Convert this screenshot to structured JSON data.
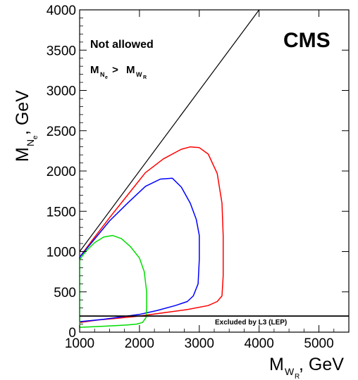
{
  "chart_data": {
    "type": "line",
    "title": "",
    "brand_label": "CMS",
    "xlabel": {
      "main": "M",
      "sub1": "W",
      "sub2": "R",
      "unit": ", GeV"
    },
    "ylabel": {
      "main": "M",
      "sub1": "N",
      "sub2": "e",
      "unit": ", GeV"
    },
    "xlim": [
      1000,
      5500
    ],
    "ylim": [
      0,
      4000
    ],
    "x_ticks": [
      1000,
      2000,
      3000,
      4000,
      5000
    ],
    "y_ticks": [
      0,
      500,
      1000,
      1500,
      2000,
      2500,
      3000,
      3500,
      4000
    ],
    "grid": false,
    "annotations": {
      "not_allowed": "Not allowed",
      "inequality": {
        "lhs_main": "M",
        "lhs_sub1": "N",
        "lhs_sub2": "e",
        "op": " > ",
        "rhs_main": "M",
        "rhs_sub1": "W",
        "rhs_sub2": "R"
      },
      "excluded": "Excluded by L3 (LEP)"
    },
    "reference_lines": [
      {
        "kind": "diagonal",
        "color": "#000000",
        "x": [
          1000,
          4000
        ],
        "y": [
          1000,
          4000
        ]
      },
      {
        "kind": "horizontal",
        "color": "#000000",
        "y": 200,
        "x": [
          1000,
          5500
        ]
      }
    ],
    "series": [
      {
        "color": "#ff0000",
        "x": [
          1000,
          1200,
          1500,
          1800,
          2100,
          2400,
          2700,
          2850,
          3000,
          3150,
          3300,
          3380,
          3400,
          3400,
          3380,
          3300,
          3150,
          2800,
          2400,
          2000,
          1600,
          1300,
          1000,
          1000
        ],
        "y": [
          930,
          1130,
          1420,
          1700,
          1980,
          2150,
          2270,
          2300,
          2290,
          2210,
          1970,
          1600,
          1200,
          700,
          450,
          380,
          330,
          280,
          240,
          200,
          170,
          150,
          120,
          930
        ]
      },
      {
        "color": "#0000ff",
        "x": [
          1000,
          1200,
          1500,
          1800,
          2100,
          2350,
          2550,
          2700,
          2850,
          2950,
          3000,
          3000,
          2980,
          2900,
          2800,
          2600,
          2300,
          2000,
          1700,
          1400,
          1000,
          1000
        ],
        "y": [
          930,
          1110,
          1380,
          1600,
          1810,
          1900,
          1910,
          1800,
          1600,
          1400,
          1200,
          900,
          600,
          450,
          380,
          330,
          270,
          220,
          190,
          160,
          130,
          930
        ]
      },
      {
        "color": "#00dd00",
        "x": [
          1000,
          1100,
          1250,
          1400,
          1550,
          1700,
          1850,
          2000,
          2080,
          2120,
          2120,
          2110,
          2050,
          1950,
          1800,
          1600,
          1300,
          1000,
          1000
        ],
        "y": [
          900,
          1000,
          1110,
          1180,
          1200,
          1160,
          1060,
          920,
          750,
          500,
          300,
          180,
          120,
          100,
          90,
          80,
          70,
          60,
          900
        ]
      }
    ]
  }
}
